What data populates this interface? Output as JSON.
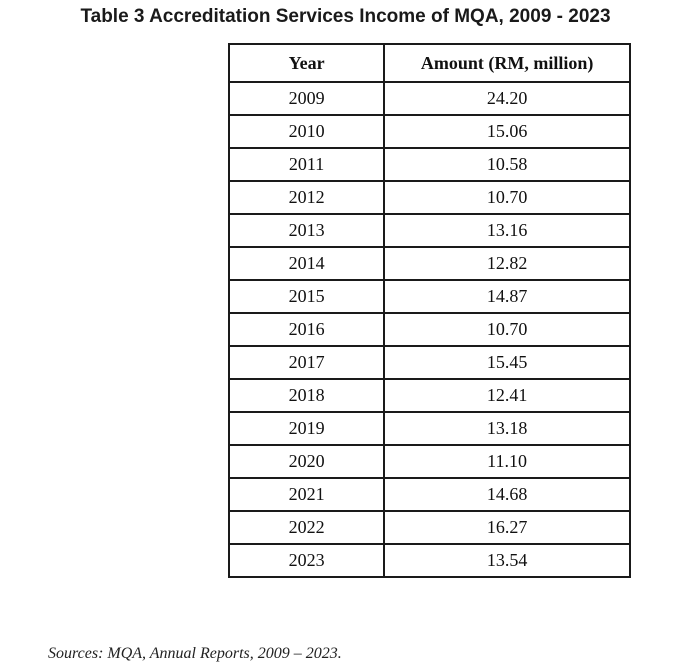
{
  "title": "Table 3 Accreditation Services Income of MQA, 2009 - 2023",
  "table": {
    "headers": [
      "Year",
      "Amount (RM, million)"
    ],
    "rows": [
      [
        "2009",
        "24.20"
      ],
      [
        "2010",
        "15.06"
      ],
      [
        "2011",
        "10.58"
      ],
      [
        "2012",
        "10.70"
      ],
      [
        "2013",
        "13.16"
      ],
      [
        "2014",
        "12.82"
      ],
      [
        "2015",
        "14.87"
      ],
      [
        "2016",
        "10.70"
      ],
      [
        "2017",
        "15.45"
      ],
      [
        "2018",
        "12.41"
      ],
      [
        "2019",
        "13.18"
      ],
      [
        "2020",
        "11.10"
      ],
      [
        "2021",
        "14.68"
      ],
      [
        "2022",
        "16.27"
      ],
      [
        "2023",
        "13.54"
      ]
    ]
  },
  "source": "Sources: MQA, Annual Reports, 2009 – 2023."
}
